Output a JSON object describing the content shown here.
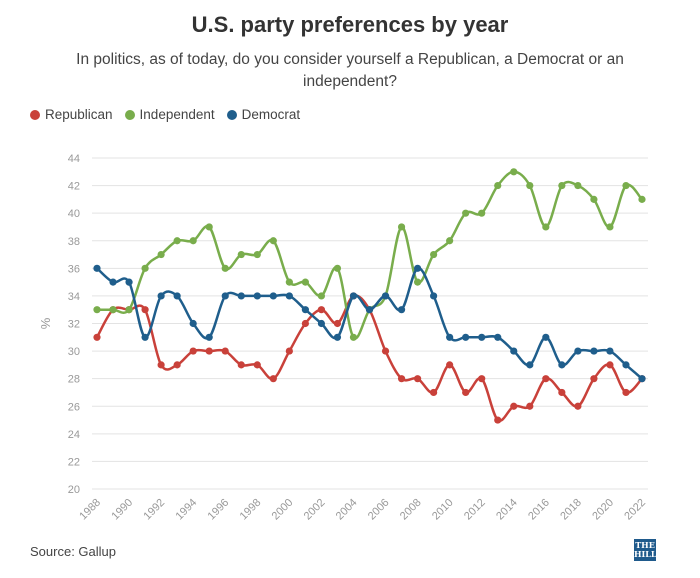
{
  "chart_data": {
    "type": "line",
    "title": "U.S. party preferences by year",
    "subtitle": "In politics, as of today, do you consider yourself a Republican, a Democrat or an independent?",
    "ylabel": "%",
    "xlabel": "",
    "ylim": [
      20,
      44
    ],
    "yticks": [
      "20",
      "22",
      "24",
      "26",
      "28",
      "30",
      "32",
      "34",
      "36",
      "38",
      "40",
      "42",
      "44"
    ],
    "xlim": [
      1988,
      2022
    ],
    "xticks": [
      "1988",
      "1990",
      "1992",
      "1994",
      "1996",
      "1998",
      "2000",
      "2002",
      "2004",
      "2006",
      "2008",
      "2010",
      "2012",
      "2014",
      "2016",
      "2018",
      "2020",
      "2022"
    ],
    "grid": true,
    "legend_position": "top-left",
    "x": [
      1988,
      1989,
      1990,
      1991,
      1992,
      1993,
      1994,
      1995,
      1996,
      1997,
      1998,
      1999,
      2000,
      2001,
      2002,
      2003,
      2004,
      2005,
      2006,
      2007,
      2008,
      2009,
      2010,
      2011,
      2012,
      2013,
      2014,
      2015,
      2016,
      2017,
      2018,
      2019,
      2020,
      2021,
      2022
    ],
    "series": [
      {
        "name": "Republican",
        "color": "#c9413a",
        "values": [
          31,
          33,
          33,
          33,
          29,
          29,
          30,
          30,
          30,
          29,
          29,
          28,
          30,
          32,
          33,
          32,
          34,
          33,
          30,
          28,
          28,
          27,
          29,
          27,
          28,
          25,
          26,
          26,
          28,
          27,
          26,
          28,
          29,
          27,
          28
        ]
      },
      {
        "name": "Independent",
        "color": "#79ad4c",
        "values": [
          33,
          33,
          33,
          36,
          37,
          38,
          38,
          39,
          36,
          37,
          37,
          38,
          35,
          35,
          34,
          36,
          31,
          33,
          34,
          39,
          35,
          37,
          38,
          40,
          40,
          42,
          43,
          42,
          39,
          42,
          42,
          41,
          39,
          42,
          41
        ]
      },
      {
        "name": "Democrat",
        "color": "#1f5e8c",
        "values": [
          36,
          35,
          35,
          31,
          34,
          34,
          32,
          31,
          34,
          34,
          34,
          34,
          34,
          33,
          32,
          31,
          34,
          33,
          34,
          33,
          36,
          34,
          31,
          31,
          31,
          31,
          30,
          29,
          31,
          29,
          30,
          30,
          30,
          29,
          28
        ]
      }
    ]
  },
  "footer": {
    "source": "Source: Gallup",
    "logo_text": "THE HILL"
  }
}
